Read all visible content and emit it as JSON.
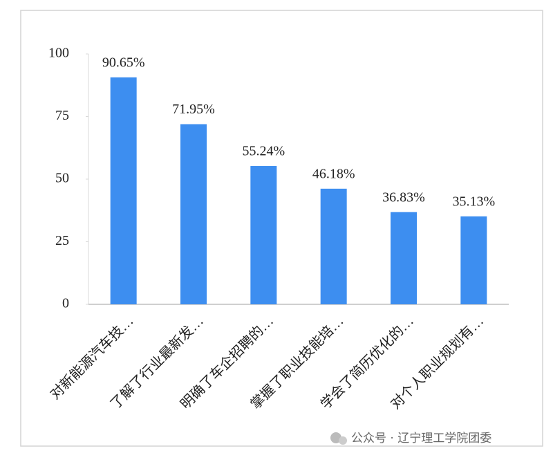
{
  "chart_data": {
    "type": "bar",
    "categories": [
      "对新能源汽车技…",
      "了解了行业最新发…",
      "明确了车企招聘的…",
      "掌握了职业技能培…",
      "学会了简历优化的…",
      "对个人职业规划有…"
    ],
    "values": [
      90.65,
      71.95,
      55.24,
      46.18,
      36.83,
      35.13
    ],
    "value_labels": [
      "90.65%",
      "71.95%",
      "55.24%",
      "46.18%",
      "36.83%",
      "35.13%"
    ],
    "color": "#3d8ef0",
    "ylim": [
      0,
      100
    ],
    "yticks": [
      0,
      25,
      50,
      75,
      100
    ],
    "grid": false
  },
  "watermark": "公众号 · 辽宁理工学院团委"
}
